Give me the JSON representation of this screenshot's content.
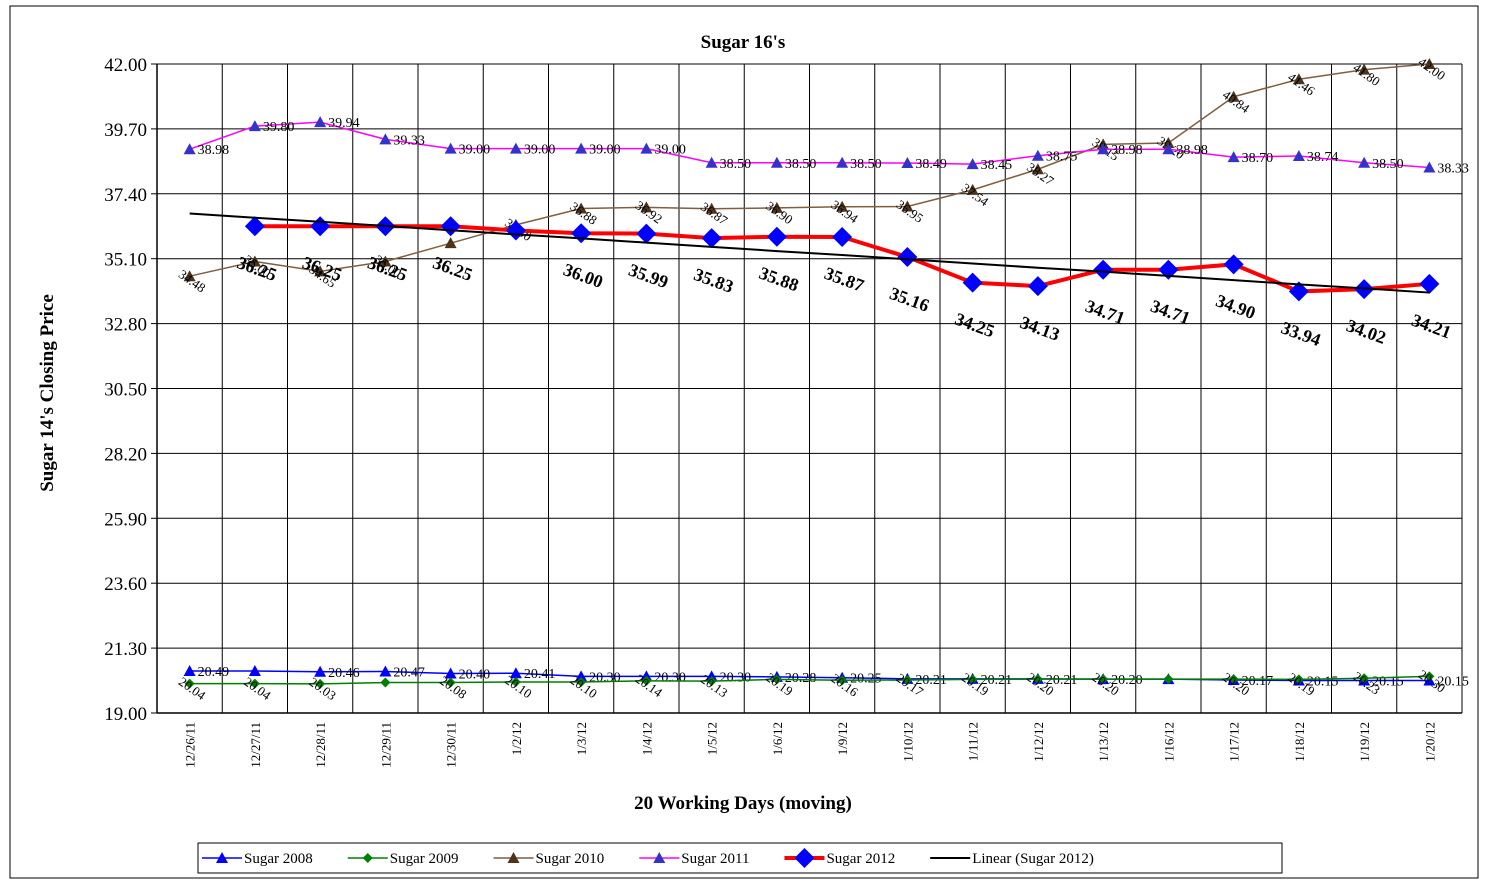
{
  "chart_data": {
    "type": "line",
    "title": "Sugar 16's",
    "x_label": "20 Working Days (moving)",
    "y_label": "Sugar 14's Closing Price",
    "categories": [
      "12/26/11",
      "12/27/11",
      "12/28/11",
      "12/29/11",
      "12/30/11",
      "1/2/12",
      "1/3/12",
      "1/4/12",
      "1/5/12",
      "1/6/12",
      "1/9/12",
      "1/10/12",
      "1/11/12",
      "1/12/12",
      "1/13/12",
      "1/16/12",
      "1/17/12",
      "1/18/12",
      "1/19/12",
      "1/20/12"
    ],
    "ylim": [
      19,
      42
    ],
    "yticks": [
      {
        "value": 19,
        "label": "19.00"
      },
      {
        "value": 21.3,
        "label": "21.30"
      },
      {
        "value": 23.6,
        "label": "23.60"
      },
      {
        "value": 25.9,
        "label": "25.90"
      },
      {
        "value": 28.2,
        "label": "28.20"
      },
      {
        "value": 30.5,
        "label": "30.50"
      },
      {
        "value": 32.8,
        "label": "32.80"
      },
      {
        "value": 35.1,
        "label": "35.10"
      },
      {
        "value": 37.4,
        "label": "37.40"
      },
      {
        "value": 39.7,
        "label": "39.70"
      },
      {
        "value": 42,
        "label": "42.00"
      }
    ],
    "grid": true,
    "legend": "bottom",
    "series": [
      {
        "name": "Sugar 2008",
        "color": "#0000ff",
        "marker": "triangle",
        "marker_color": "#0000ff",
        "values": [
          20.49,
          20.49,
          20.46,
          20.47,
          20.4,
          20.41,
          20.3,
          20.3,
          20.3,
          20.28,
          20.25,
          20.21,
          20.21,
          20.21,
          20.2,
          20.2,
          20.17,
          20.15,
          20.15,
          20.15
        ],
        "value_labels": [
          "20.49",
          null,
          "20.46",
          "20.47",
          "20.40",
          "20.41",
          "20.30",
          "20.30",
          "20.30",
          "20.28",
          "20.25",
          "20.21",
          "20.21",
          "20.21",
          "20.20",
          null,
          "20.17",
          "20.15",
          "20.15",
          "20.15"
        ]
      },
      {
        "name": "Sugar 2009",
        "color": "#008000",
        "marker": "diamond",
        "marker_color": "#008000",
        "values": [
          20.04,
          20.04,
          20.03,
          20.08,
          20.08,
          20.1,
          20.1,
          20.14,
          20.13,
          20.19,
          20.16,
          20.17,
          20.19,
          20.2,
          20.2,
          20.2,
          20.2,
          20.19,
          20.23,
          20.3
        ],
        "value_labels": [
          "20.04",
          "20.04",
          "20.03",
          null,
          "20.08",
          "20.10",
          "20.10",
          "20.14",
          "20.13",
          "20.19",
          "20.16",
          "20.17",
          "20.19",
          "20.20",
          "20.20",
          null,
          "20.20",
          "20.19",
          "20.23",
          "20.30"
        ]
      },
      {
        "name": "Sugar 2010",
        "color": "#7f5f3f",
        "marker": "triangle",
        "marker_color": "#4d3319",
        "values": [
          34.48,
          35.0,
          34.65,
          35.0,
          35.65,
          36.3,
          36.88,
          36.92,
          36.87,
          36.9,
          36.94,
          36.95,
          37.54,
          38.27,
          39.15,
          39.2,
          40.84,
          41.46,
          41.8,
          42.0
        ],
        "value_labels": [
          "34.48",
          "35.00",
          "34.65",
          "35.00",
          null,
          "36.30",
          "36.88",
          "36.92",
          "36.87",
          "36.90",
          "36.94",
          "36.95",
          "37.54",
          "38.27",
          "39.15",
          "39.20",
          "40.84",
          "41.46",
          "41.80",
          "42.00"
        ]
      },
      {
        "name": "Sugar 2011",
        "color": "#ff00ff",
        "marker": "triangle",
        "marker_color": "#3333cc",
        "values": [
          38.98,
          39.8,
          39.94,
          39.33,
          39.0,
          39.0,
          39.0,
          39.0,
          38.5,
          38.5,
          38.5,
          38.49,
          38.45,
          38.75,
          38.98,
          38.98,
          38.7,
          38.74,
          38.5,
          38.33
        ],
        "value_labels": [
          "38.98",
          "39.80",
          "39.94",
          "39.33",
          "39.00",
          "39.00",
          "39.00",
          "39.00",
          "38.50",
          "38.50",
          "38.50",
          "38.49",
          "38.45",
          "38.75",
          "38.98",
          "38.98",
          "38.70",
          "38.74",
          "38.50",
          "38.33"
        ]
      },
      {
        "name": "Sugar 2012",
        "color": "#ff0000",
        "marker": "bigdiamond",
        "marker_color": "#0000ff",
        "line_width": 4,
        "values": [
          null,
          36.25,
          36.25,
          36.25,
          36.25,
          36.1,
          36.0,
          35.99,
          35.83,
          35.88,
          35.87,
          35.16,
          34.25,
          34.13,
          34.71,
          34.71,
          34.9,
          33.94,
          34.02,
          34.21
        ],
        "value_labels": [
          null,
          "36.25",
          "36.25",
          "36.25",
          "36.25",
          null,
          "36.00",
          "35.99",
          "35.83",
          "35.88",
          "35.87",
          "35.16",
          "34.25",
          "34.13",
          "34.71",
          "34.71",
          "34.90",
          "33.94",
          "34.02",
          "34.21"
        ]
      },
      {
        "name": "Linear (Sugar 2012)",
        "color": "#000000",
        "marker": "none",
        "line_width": 2,
        "values": [
          36.7,
          36.55,
          36.41,
          36.26,
          36.11,
          35.96,
          35.82,
          35.67,
          35.52,
          35.37,
          35.23,
          35.08,
          34.93,
          34.78,
          34.64,
          34.49,
          34.34,
          34.19,
          34.05,
          33.9
        ]
      }
    ]
  }
}
